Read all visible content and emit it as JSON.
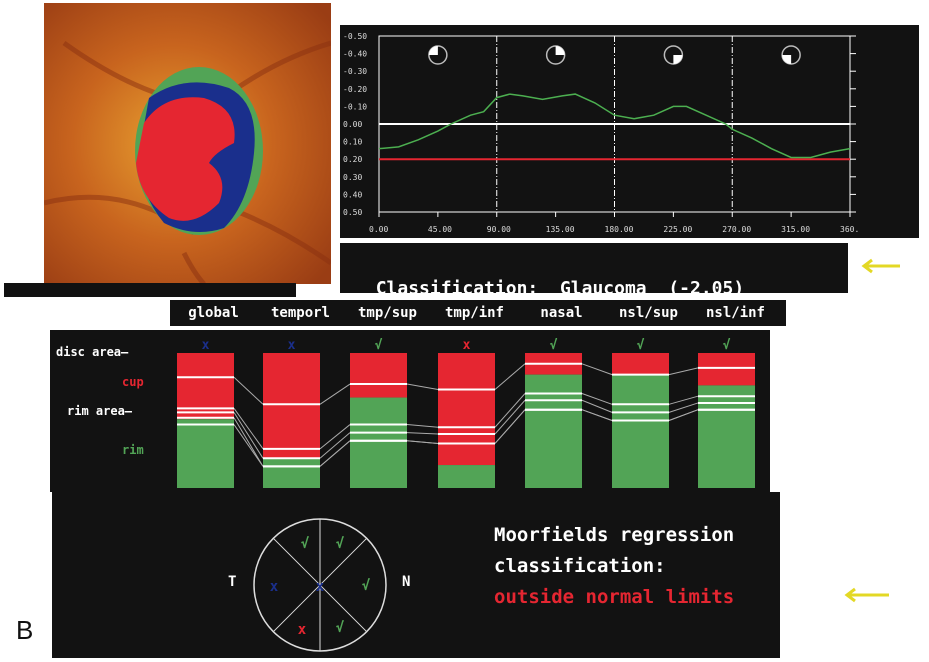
{
  "figure_label": "B",
  "colors": {
    "cup": "#e52631",
    "rim": "#52a456",
    "blue": "#1a2f8c",
    "yellow": "#e3d825",
    "profile": "#4caf50",
    "reference": "#e52631"
  },
  "chart_data": {
    "type": "line",
    "x_ticks": [
      "0.00",
      "45.00",
      "90.00",
      "135.00",
      "180.00",
      "225.00",
      "270.00",
      "315.00",
      "360."
    ],
    "y_ticks": [
      "-0.50",
      "-0.40",
      "-0.30",
      "-0.20",
      "-0.10",
      "0.00",
      "0.10",
      "0.20",
      "0.30",
      "0.40",
      "0.50"
    ],
    "xlim": [
      0,
      360
    ],
    "ylim": [
      -0.5,
      0.5
    ],
    "y_inverted": true,
    "sector_dividers": [
      90,
      180,
      270
    ],
    "reference_lines": [
      {
        "y": 0.0,
        "color": "#ffffff"
      },
      {
        "y": 0.2,
        "color": "#e52631"
      }
    ],
    "series": [
      {
        "x": [
          0,
          15,
          30,
          45,
          55,
          70,
          80,
          90,
          100,
          110,
          125,
          140,
          150,
          165,
          180,
          195,
          210,
          225,
          235,
          250,
          265,
          270,
          285,
          300,
          315,
          330,
          345,
          360
        ],
        "y": [
          0.14,
          0.13,
          0.09,
          0.04,
          0.0,
          -0.05,
          -0.07,
          -0.15,
          -0.17,
          -0.16,
          -0.14,
          -0.16,
          -0.17,
          -0.12,
          -0.05,
          -0.03,
          -0.05,
          -0.1,
          -0.1,
          -0.05,
          0.0,
          0.03,
          0.08,
          0.14,
          0.19,
          0.19,
          0.16,
          0.14
        ]
      }
    ],
    "quadrant_icons": [
      "upper-left",
      "upper-right",
      "lower-right",
      "lower-left"
    ]
  },
  "classification": {
    "label": "Classification:",
    "result": "Glaucoma",
    "score": "(-2.05)"
  },
  "sectors": {
    "headers": [
      "global",
      "temporl",
      "tmp/sup",
      "tmp/inf",
      "nasal",
      "nsl/sup",
      "nsl/inf"
    ],
    "row_labels": {
      "disc_area": "disc area",
      "cup": "cup",
      "rim_area": "rim area",
      "rim": "rim"
    },
    "marks": [
      {
        "symbol": "x",
        "color": "#1a2f8c"
      },
      {
        "symbol": "x",
        "color": "#1a2f8c"
      },
      {
        "symbol": "√",
        "color": "#52a456"
      },
      {
        "symbol": "x",
        "color": "#e52631"
      },
      {
        "symbol": "√",
        "color": "#52a456"
      },
      {
        "symbol": "√",
        "color": "#52a456"
      },
      {
        "symbol": "√",
        "color": "#52a456"
      }
    ],
    "cup_fraction": [
      0.49,
      0.78,
      0.33,
      0.83,
      0.16,
      0.16,
      0.24
    ],
    "limit_lines": [
      [
        0.18,
        0.41,
        0.44,
        0.48,
        0.53
      ],
      [
        0.38,
        0.71,
        0.78,
        0.84,
        0.84
      ],
      [
        0.23,
        0.53,
        0.59,
        0.65,
        0.65
      ],
      [
        0.27,
        0.55,
        0.6,
        0.67,
        0.67
      ],
      [
        0.08,
        0.3,
        0.35,
        0.42,
        0.42
      ],
      [
        0.16,
        0.38,
        0.44,
        0.5,
        0.5
      ],
      [
        0.11,
        0.32,
        0.37,
        0.42,
        0.42
      ]
    ]
  },
  "regression": {
    "side_left": "T",
    "side_right": "N",
    "sector_marks": [
      {
        "symbol": "√",
        "color": "#52a456"
      },
      {
        "symbol": "√",
        "color": "#52a456"
      },
      {
        "symbol": "√",
        "color": "#52a456"
      },
      {
        "symbol": "√",
        "color": "#52a456"
      },
      {
        "symbol": "x",
        "color": "#e52631"
      },
      {
        "symbol": "x",
        "color": "#1a2f8c"
      },
      {
        "symbol": "x",
        "color": "#1a2f8c"
      }
    ],
    "title_line1": "Moorfields regression",
    "title_line2": "classification:",
    "result": "outside normal limits"
  }
}
